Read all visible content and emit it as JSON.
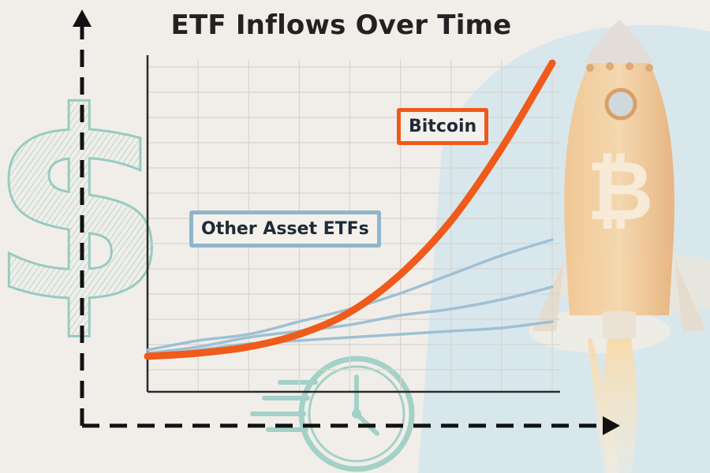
{
  "chart_data": {
    "type": "line",
    "title": "ETF Inflows Over Time",
    "xlabel": "",
    "ylabel": "",
    "x": [
      0,
      1,
      2,
      3,
      4,
      5,
      6,
      7,
      8
    ],
    "xlim": [
      0,
      8
    ],
    "ylim": [
      0,
      100
    ],
    "grid": true,
    "legend": "inline labels",
    "series": [
      {
        "name": "Bitcoin",
        "color": "#f05a1a",
        "values": [
          7,
          8,
          10,
          14,
          21,
          33,
          50,
          73,
          100
        ]
      },
      {
        "name": "Other Asset ETFs",
        "color": "#9ec0d4",
        "values": [
          9,
          12,
          14,
          18,
          22,
          27,
          33,
          39,
          44
        ]
      },
      {
        "name": "",
        "color": "#9ec0d4",
        "values": [
          8,
          10,
          13,
          15,
          17,
          20,
          22,
          25,
          29
        ]
      },
      {
        "name": "",
        "color": "#9ec0d4",
        "values": [
          7,
          9,
          11,
          12,
          13,
          14,
          15,
          16,
          18
        ]
      }
    ]
  },
  "labels": {
    "bitcoin": "Bitcoin",
    "other": "Other Asset ETFs"
  },
  "colors": {
    "background": "#f1eee9",
    "bitcoin": "#f05a1a",
    "others": "#9ec0d4",
    "decor": "#8fc7bf",
    "sky": "#cfe2ea"
  },
  "icons": {
    "dollar": "dollar-sign-icon",
    "clock": "clock-icon",
    "rocket": "rocket-icon",
    "bitcoin": "bitcoin-symbol-icon"
  }
}
